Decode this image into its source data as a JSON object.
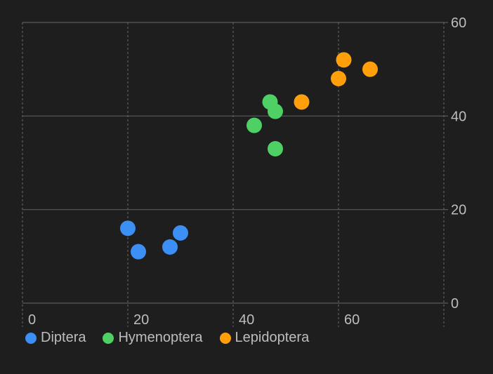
{
  "chart_data": {
    "type": "scatter",
    "title": "",
    "xlabel": "",
    "ylabel": "",
    "xlim": [
      0,
      80
    ],
    "ylim": [
      0,
      60
    ],
    "x_ticks": [
      0,
      20,
      40,
      60
    ],
    "y_ticks": [
      0,
      20,
      40,
      60
    ],
    "x_tick_labels": [
      "0",
      "20",
      "40",
      "60"
    ],
    "y_tick_labels": [
      "0",
      "20",
      "40",
      "60"
    ],
    "y_axis_side": "right",
    "grid": true,
    "legend_position": "bottom-left",
    "background": "#1e1e1e",
    "series": [
      {
        "name": "Diptera",
        "color": "#3b8ff5",
        "points": [
          [
            20,
            16
          ],
          [
            22,
            11
          ],
          [
            28,
            12
          ],
          [
            30,
            15
          ]
        ]
      },
      {
        "name": "Hymenoptera",
        "color": "#4fd064",
        "points": [
          [
            44,
            38
          ],
          [
            47,
            43
          ],
          [
            48,
            41
          ],
          [
            48,
            33
          ]
        ]
      },
      {
        "name": "Lepidoptera",
        "color": "#ff9f0a",
        "points": [
          [
            53,
            43
          ],
          [
            60,
            48
          ],
          [
            61,
            52
          ],
          [
            66,
            50
          ]
        ]
      }
    ]
  }
}
